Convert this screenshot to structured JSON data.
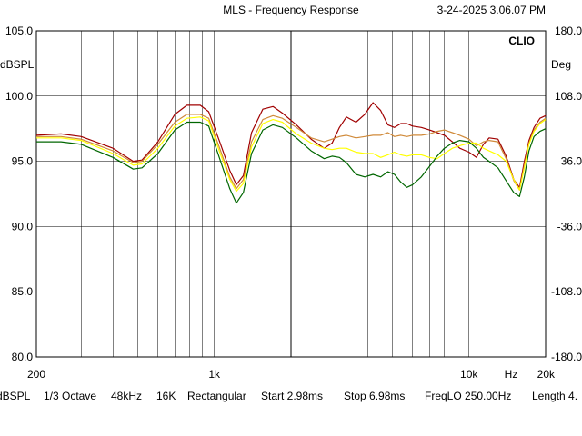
{
  "header": {
    "title": "MLS - Frequency Response",
    "timestamp": "3-24-2025 3.06.07 PM",
    "brand": "CLIO"
  },
  "footer": {
    "items": [
      "dBSPL",
      "1/3 Octave",
      "48kHz",
      "16K",
      "Rectangular",
      "Start 2.98ms",
      "Stop 6.98ms",
      "FreqLO 250.00Hz",
      "Length 4."
    ]
  },
  "chart_data": {
    "type": "line",
    "title": "MLS - Frequency Response",
    "xscale": "log",
    "xlim": [
      200,
      20000
    ],
    "ylim": [
      80,
      105
    ],
    "y2lim": [
      -180,
      180
    ],
    "ylabel": "dBSPL",
    "y2label": "Deg",
    "xticks": [
      {
        "value": 200,
        "label": "200"
      },
      {
        "value": 1000,
        "label": "1k"
      },
      {
        "value": 10000,
        "label": "10k"
      },
      {
        "value": 20000,
        "label": "20k"
      }
    ],
    "xunit_label": "Hz",
    "yticks": [
      {
        "value": 105,
        "label": "105.0"
      },
      {
        "value": 100,
        "label": "100.0"
      },
      {
        "value": 95,
        "label": "95.0"
      },
      {
        "value": 90,
        "label": "90.0"
      },
      {
        "value": 85,
        "label": "85.0"
      },
      {
        "value": 80,
        "label": "80.0"
      }
    ],
    "y2ticks": [
      {
        "value": 180,
        "label": "180.0"
      },
      {
        "value": 108,
        "label": "108.0"
      },
      {
        "value": 36,
        "label": "36.0"
      },
      {
        "value": -36,
        "label": "-36.0"
      },
      {
        "value": -108,
        "label": "-108.0"
      },
      {
        "value": -180,
        "label": "-180.0"
      }
    ],
    "grid": true,
    "colors": {
      "background": "#ffffff",
      "grid": "#000000",
      "dark_red": "#a00000",
      "orange": "#d08a3a",
      "yellow": "#ffff00",
      "dark_green": "#006600"
    },
    "series": [
      {
        "color": "#a00000",
        "x": [
          200,
          250,
          300,
          400,
          480,
          520,
          600,
          700,
          780,
          880,
          950,
          1050,
          1150,
          1220,
          1300,
          1400,
          1550,
          1700,
          1850,
          2100,
          2400,
          2700,
          2900,
          3100,
          3300,
          3600,
          3900,
          4200,
          4500,
          4800,
          5100,
          5400,
          5700,
          6000,
          6500,
          7000,
          7500,
          8000,
          8600,
          9200,
          10000,
          10700,
          11400,
          12000,
          13000,
          14000,
          15000,
          15800,
          16500,
          17200,
          18000,
          19000,
          20000
        ],
        "y": [
          97.0,
          97.1,
          96.9,
          96.0,
          95.0,
          95.1,
          96.5,
          98.6,
          99.3,
          99.3,
          98.8,
          96.5,
          94.3,
          93.2,
          93.9,
          97.2,
          99.0,
          99.2,
          98.7,
          97.8,
          96.7,
          96.0,
          96.4,
          97.6,
          98.4,
          98.0,
          98.6,
          99.5,
          98.9,
          97.8,
          97.6,
          97.9,
          97.9,
          97.7,
          97.6,
          97.4,
          97.2,
          97.0,
          96.5,
          96.0,
          95.7,
          95.3,
          96.3,
          96.8,
          96.7,
          95.4,
          93.6,
          93.0,
          95.0,
          96.6,
          97.6,
          98.3,
          98.5
        ]
      },
      {
        "color": "#d08a3a",
        "x": [
          200,
          250,
          300,
          400,
          480,
          520,
          600,
          700,
          780,
          880,
          950,
          1050,
          1150,
          1220,
          1300,
          1400,
          1550,
          1700,
          1850,
          2100,
          2400,
          2700,
          2900,
          3100,
          3300,
          3600,
          3900,
          4200,
          4500,
          4800,
          5100,
          5400,
          5700,
          6000,
          6500,
          7000,
          7500,
          8000,
          8600,
          9200,
          10000,
          10700,
          11400,
          12000,
          13000,
          14000,
          15000,
          15800,
          16500,
          17200,
          18000,
          19000,
          20000
        ],
        "y": [
          96.9,
          96.9,
          96.7,
          95.8,
          94.9,
          95.0,
          96.3,
          98.0,
          98.6,
          98.6,
          98.3,
          96.0,
          93.8,
          92.9,
          93.6,
          96.5,
          98.2,
          98.5,
          98.3,
          97.6,
          96.8,
          96.5,
          96.7,
          96.9,
          97.0,
          96.8,
          96.9,
          97.0,
          97.0,
          97.2,
          96.9,
          97.0,
          96.9,
          97.0,
          97.0,
          97.1,
          97.3,
          97.4,
          97.2,
          97.0,
          96.7,
          96.2,
          96.5,
          96.6,
          96.5,
          95.2,
          93.5,
          92.8,
          94.7,
          96.4,
          97.4,
          98.0,
          98.3
        ]
      },
      {
        "color": "#ffff00",
        "x": [
          200,
          250,
          300,
          400,
          480,
          520,
          600,
          700,
          780,
          880,
          950,
          1050,
          1150,
          1220,
          1300,
          1400,
          1550,
          1700,
          1850,
          2100,
          2400,
          2700,
          2900,
          3100,
          3300,
          3600,
          3900,
          4200,
          4500,
          4800,
          5100,
          5400,
          5700,
          6000,
          6500,
          7000,
          7500,
          8000,
          8600,
          9200,
          10000,
          10700,
          11400,
          12000,
          13000,
          14000,
          15000,
          15800,
          16500,
          17200,
          18000,
          19000,
          20000
        ],
        "y": [
          96.8,
          96.8,
          96.6,
          95.6,
          94.7,
          94.8,
          96.0,
          97.7,
          98.3,
          98.4,
          98.1,
          95.7,
          93.6,
          92.7,
          93.3,
          96.1,
          97.9,
          98.2,
          98.0,
          97.1,
          96.4,
          96.0,
          95.9,
          96.0,
          96.0,
          95.7,
          95.6,
          95.6,
          95.3,
          95.5,
          95.7,
          95.5,
          95.4,
          95.5,
          95.5,
          95.3,
          95.2,
          95.6,
          96.0,
          96.2,
          96.4,
          96.4,
          96.0,
          95.8,
          95.5,
          95.0,
          93.6,
          92.8,
          94.5,
          96.3,
          97.3,
          97.9,
          98.2
        ]
      },
      {
        "color": "#006600",
        "x": [
          200,
          250,
          300,
          400,
          480,
          520,
          600,
          700,
          780,
          880,
          950,
          1050,
          1150,
          1220,
          1300,
          1400,
          1550,
          1700,
          1850,
          2100,
          2400,
          2700,
          2900,
          3100,
          3300,
          3600,
          3900,
          4200,
          4500,
          4800,
          5100,
          5400,
          5700,
          6000,
          6500,
          7000,
          7500,
          8000,
          8600,
          9200,
          10000,
          10700,
          11400,
          12000,
          13000,
          14000,
          15000,
          15800,
          16500,
          17200,
          18000,
          19000,
          20000
        ],
        "y": [
          96.5,
          96.5,
          96.3,
          95.3,
          94.4,
          94.5,
          95.6,
          97.4,
          98.0,
          98.0,
          97.7,
          95.2,
          92.9,
          91.8,
          92.6,
          95.6,
          97.4,
          97.8,
          97.6,
          96.8,
          95.8,
          95.2,
          95.4,
          95.3,
          94.9,
          94.0,
          93.8,
          94.0,
          93.8,
          94.2,
          94.0,
          93.4,
          93.0,
          93.2,
          93.8,
          94.6,
          95.4,
          96.0,
          96.4,
          96.6,
          96.5,
          96.0,
          95.3,
          95.0,
          94.5,
          93.5,
          92.6,
          92.3,
          93.8,
          95.8,
          96.9,
          97.3,
          97.5
        ]
      }
    ]
  }
}
